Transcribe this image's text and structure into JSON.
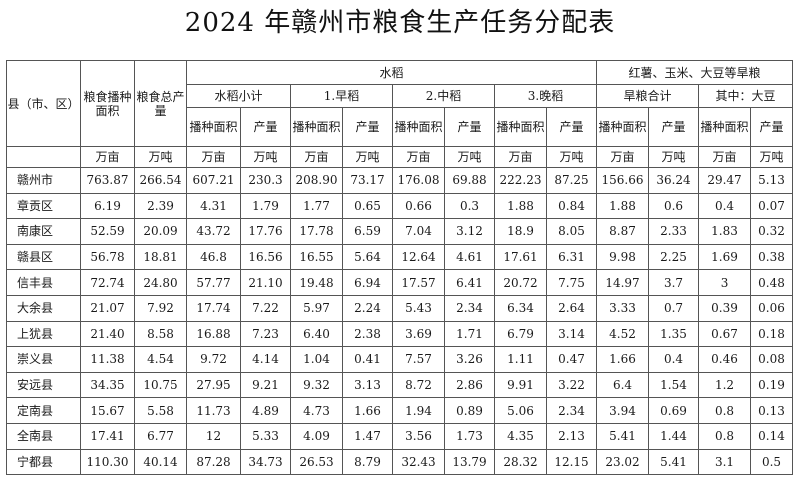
{
  "title": "2024 年赣州市粮食生产任务分配表",
  "headers": {
    "county": "县（市、区）",
    "grain_area": "粮食播种面积",
    "grain_output": "粮食总产量",
    "rice": "水稻",
    "dryland": "红薯、玉米、大豆等旱粮",
    "rice_subtotal": "水稻小计",
    "early": "1.早稻",
    "middle": "2.中稻",
    "late": "3.晚稻",
    "dry_total": "旱粮合计",
    "soy": "其中：大豆",
    "sow_area": "播种面积",
    "output": "产量",
    "unit_area": "万亩",
    "unit_ton": "万吨"
  },
  "rows": [
    {
      "name": "赣州市",
      "v": [
        "763.87",
        "266.54",
        "607.21",
        "230.3",
        "208.90",
        "73.17",
        "176.08",
        "69.88",
        "222.23",
        "87.25",
        "156.66",
        "36.24",
        "29.47",
        "5.13"
      ]
    },
    {
      "name": "章贡区",
      "v": [
        "6.19",
        "2.39",
        "4.31",
        "1.79",
        "1.77",
        "0.65",
        "0.66",
        "0.3",
        "1.88",
        "0.84",
        "1.88",
        "0.6",
        "0.4",
        "0.07"
      ]
    },
    {
      "name": "南康区",
      "v": [
        "52.59",
        "20.09",
        "43.72",
        "17.76",
        "17.78",
        "6.59",
        "7.04",
        "3.12",
        "18.9",
        "8.05",
        "8.87",
        "2.33",
        "1.83",
        "0.32"
      ]
    },
    {
      "name": "赣县区",
      "v": [
        "56.78",
        "18.81",
        "46.8",
        "16.56",
        "16.55",
        "5.64",
        "12.64",
        "4.61",
        "17.61",
        "6.31",
        "9.98",
        "2.25",
        "1.69",
        "0.38"
      ]
    },
    {
      "name": "信丰县",
      "v": [
        "72.74",
        "24.80",
        "57.77",
        "21.10",
        "19.48",
        "6.94",
        "17.57",
        "6.41",
        "20.72",
        "7.75",
        "14.97",
        "3.7",
        "3",
        "0.48"
      ]
    },
    {
      "name": "大余县",
      "v": [
        "21.07",
        "7.92",
        "17.74",
        "7.22",
        "5.97",
        "2.24",
        "5.43",
        "2.34",
        "6.34",
        "2.64",
        "3.33",
        "0.7",
        "0.39",
        "0.06"
      ]
    },
    {
      "name": "上犹县",
      "v": [
        "21.40",
        "8.58",
        "16.88",
        "7.23",
        "6.40",
        "2.38",
        "3.69",
        "1.71",
        "6.79",
        "3.14",
        "4.52",
        "1.35",
        "0.67",
        "0.18"
      ]
    },
    {
      "name": "崇义县",
      "v": [
        "11.38",
        "4.54",
        "9.72",
        "4.14",
        "1.04",
        "0.41",
        "7.57",
        "3.26",
        "1.11",
        "0.47",
        "1.66",
        "0.4",
        "0.46",
        "0.08"
      ]
    },
    {
      "name": "安远县",
      "v": [
        "34.35",
        "10.75",
        "27.95",
        "9.21",
        "9.32",
        "3.13",
        "8.72",
        "2.86",
        "9.91",
        "3.22",
        "6.4",
        "1.54",
        "1.2",
        "0.19"
      ]
    },
    {
      "name": "定南县",
      "v": [
        "15.67",
        "5.58",
        "11.73",
        "4.89",
        "4.73",
        "1.66",
        "1.94",
        "0.89",
        "5.06",
        "2.34",
        "3.94",
        "0.69",
        "0.8",
        "0.13"
      ]
    },
    {
      "name": "全南县",
      "v": [
        "17.41",
        "6.77",
        "12",
        "5.33",
        "4.09",
        "1.47",
        "3.56",
        "1.73",
        "4.35",
        "2.13",
        "5.41",
        "1.44",
        "0.8",
        "0.14"
      ]
    },
    {
      "name": "宁都县",
      "v": [
        "110.30",
        "40.14",
        "87.28",
        "34.73",
        "26.53",
        "8.79",
        "32.43",
        "13.79",
        "28.32",
        "12.15",
        "23.02",
        "5.41",
        "3.1",
        "0.5"
      ]
    }
  ]
}
